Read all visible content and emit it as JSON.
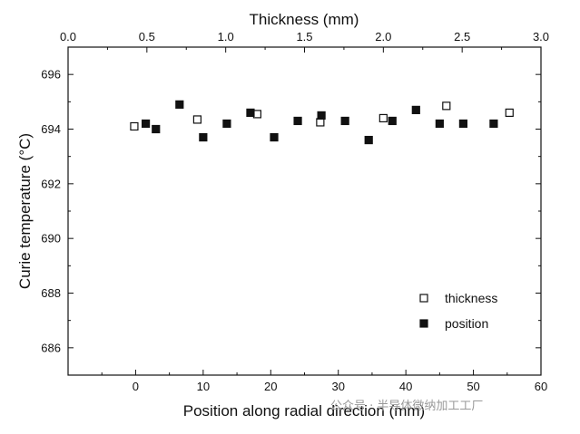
{
  "chart_data": {
    "type": "scatter",
    "title": "",
    "xlabel": "Position along radial direction (mm)",
    "x2label": "Thickness (mm)",
    "ylabel": "Curie temperature (°C)",
    "xlim": [
      -10,
      60
    ],
    "x2lim": [
      0.0,
      3.0
    ],
    "ylim": [
      685,
      697
    ],
    "x_ticks": [
      0,
      10,
      20,
      30,
      40,
      50,
      60
    ],
    "x2_ticks": [
      0.0,
      0.5,
      1.0,
      1.5,
      2.0,
      2.5,
      3.0
    ],
    "x2_tick_labels": [
      "0.0",
      "0.5",
      "1.0",
      "1.5",
      "2.0",
      "2.5",
      "3.0"
    ],
    "y_ticks": [
      686,
      688,
      690,
      692,
      694,
      696
    ],
    "grid": false,
    "legend": "bottom-right",
    "series": [
      {
        "name": "thickness",
        "marker": "open-square",
        "axis": "top",
        "points": [
          {
            "x": 0.42,
            "y": 694.1
          },
          {
            "x": 0.82,
            "y": 694.35
          },
          {
            "x": 1.2,
            "y": 694.55
          },
          {
            "x": 1.6,
            "y": 694.25
          },
          {
            "x": 2.0,
            "y": 694.4
          },
          {
            "x": 2.4,
            "y": 694.85
          },
          {
            "x": 2.8,
            "y": 694.6
          }
        ]
      },
      {
        "name": "position",
        "marker": "filled-square",
        "axis": "bottom",
        "points": [
          {
            "x": 1.5,
            "y": 694.2
          },
          {
            "x": 3.0,
            "y": 694.0
          },
          {
            "x": 6.5,
            "y": 694.9
          },
          {
            "x": 10.0,
            "y": 693.7
          },
          {
            "x": 13.5,
            "y": 694.2
          },
          {
            "x": 17.0,
            "y": 694.6
          },
          {
            "x": 20.5,
            "y": 693.7
          },
          {
            "x": 24.0,
            "y": 694.3
          },
          {
            "x": 27.5,
            "y": 694.5
          },
          {
            "x": 31.0,
            "y": 694.3
          },
          {
            "x": 34.5,
            "y": 693.6
          },
          {
            "x": 38.0,
            "y": 694.3
          },
          {
            "x": 41.5,
            "y": 694.7
          },
          {
            "x": 45.0,
            "y": 694.2
          },
          {
            "x": 48.5,
            "y": 694.2
          },
          {
            "x": 53.0,
            "y": 694.2
          }
        ]
      }
    ]
  },
  "watermark": "公众号 · 半导体微纳加工工厂"
}
